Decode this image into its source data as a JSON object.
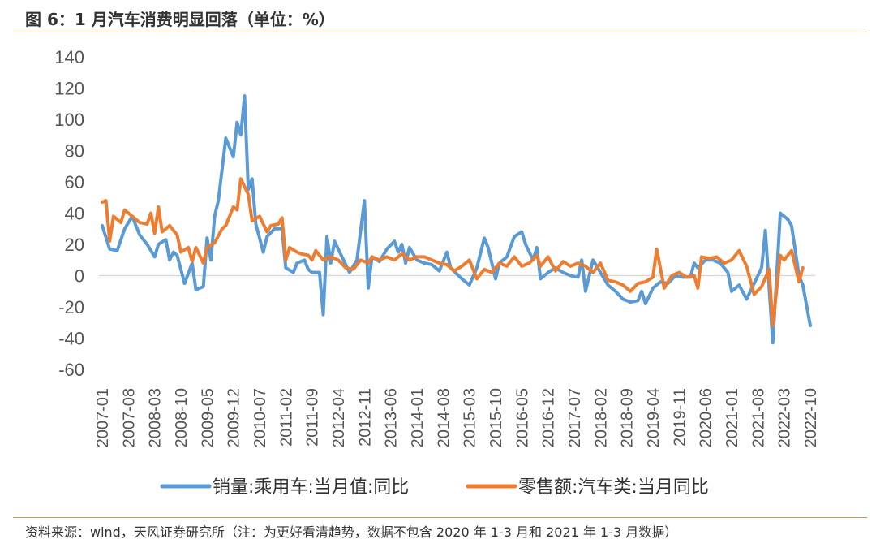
{
  "header": {
    "title": "图 6：1 月汽车消费明显回落（单位：%）"
  },
  "footer": {
    "source": "资料来源：wind，天风证券研究所（注：为更好看清趋势，数据不包含 2020 年 1-3 月和 2021 年 1-3 月数据）"
  },
  "colors": {
    "series1": "#5b9bd5",
    "series2": "#ed7d31",
    "accent_rule": "#d89a5a"
  },
  "chart_data": {
    "type": "line",
    "title": "",
    "xlabel": "",
    "ylabel": "",
    "ylim": [
      -60,
      140
    ],
    "yticks": [
      "140",
      "120",
      "100",
      "80",
      "60",
      "40",
      "20",
      "0",
      "-20",
      "-40",
      "-60"
    ],
    "xticks": [
      "2007-01",
      "2007-08",
      "2008-03",
      "2008-10",
      "2009-05",
      "2009-12",
      "2010-07",
      "2011-02",
      "2011-09",
      "2012-04",
      "2012-11",
      "2013-06",
      "2014-01",
      "2014-08",
      "2015-03",
      "2015-10",
      "2016-05",
      "2016-12",
      "2017-07",
      "2018-02",
      "2018-09",
      "2019-04",
      "2019-11",
      "2020-06",
      "2021-01",
      "2021-08",
      "2022-03",
      "2022-10"
    ],
    "legend_position": "bottom",
    "grid": false,
    "series": [
      {
        "name": "销量:乘用车:当月值:同比",
        "color": "#5b9bd5",
        "points": [
          [
            "2007-01",
            32
          ],
          [
            "2007-03",
            17
          ],
          [
            "2007-05",
            16
          ],
          [
            "2007-07",
            30
          ],
          [
            "2007-09",
            38
          ],
          [
            "2007-11",
            26
          ],
          [
            "2008-01",
            20
          ],
          [
            "2008-03",
            12
          ],
          [
            "2008-04",
            20
          ],
          [
            "2008-06",
            23
          ],
          [
            "2008-07",
            10
          ],
          [
            "2008-08",
            15
          ],
          [
            "2008-09",
            13
          ],
          [
            "2008-11",
            -5
          ],
          [
            "2009-01",
            8
          ],
          [
            "2009-02",
            -9
          ],
          [
            "2009-04",
            -7
          ],
          [
            "2009-05",
            24
          ],
          [
            "2009-06",
            10
          ],
          [
            "2009-07",
            38
          ],
          [
            "2009-08",
            48
          ],
          [
            "2009-10",
            88
          ],
          [
            "2009-12",
            76
          ],
          [
            "2010-01",
            98
          ],
          [
            "2010-02",
            90
          ],
          [
            "2010-03",
            115
          ],
          [
            "2010-04",
            55
          ],
          [
            "2010-05",
            62
          ],
          [
            "2010-06",
            33
          ],
          [
            "2010-08",
            15
          ],
          [
            "2010-09",
            25
          ],
          [
            "2010-11",
            30
          ],
          [
            "2011-01",
            30
          ],
          [
            "2011-02",
            5
          ],
          [
            "2011-04",
            2
          ],
          [
            "2011-05",
            8
          ],
          [
            "2011-07",
            10
          ],
          [
            "2011-08",
            4
          ],
          [
            "2011-09",
            2
          ],
          [
            "2011-11",
            2
          ],
          [
            "2011-12",
            -25
          ],
          [
            "2012-01",
            25
          ],
          [
            "2012-02",
            8
          ],
          [
            "2012-03",
            22
          ],
          [
            "2012-05",
            12
          ],
          [
            "2012-07",
            2
          ],
          [
            "2012-09",
            10
          ],
          [
            "2012-11",
            48
          ],
          [
            "2012-12",
            -8
          ],
          [
            "2013-01",
            12
          ],
          [
            "2013-03",
            9
          ],
          [
            "2013-05",
            17
          ],
          [
            "2013-07",
            22
          ],
          [
            "2013-08",
            15
          ],
          [
            "2013-09",
            20
          ],
          [
            "2013-10",
            8
          ],
          [
            "2013-11",
            18
          ],
          [
            "2014-01",
            10
          ],
          [
            "2014-03",
            8
          ],
          [
            "2014-05",
            7
          ],
          [
            "2014-07",
            3
          ],
          [
            "2014-09",
            15
          ],
          [
            "2014-10",
            5
          ],
          [
            "2015-01",
            -2
          ],
          [
            "2015-03",
            -6
          ],
          [
            "2015-05",
            5
          ],
          [
            "2015-07",
            24
          ],
          [
            "2015-08",
            18
          ],
          [
            "2015-10",
            -2
          ],
          [
            "2015-11",
            8
          ],
          [
            "2016-01",
            12
          ],
          [
            "2016-03",
            25
          ],
          [
            "2016-05",
            28
          ],
          [
            "2016-06",
            20
          ],
          [
            "2016-08",
            10
          ],
          [
            "2016-09",
            18
          ],
          [
            "2016-10",
            -2
          ],
          [
            "2016-12",
            2
          ],
          [
            "2017-02",
            5
          ],
          [
            "2017-04",
            2
          ],
          [
            "2017-06",
            0
          ],
          [
            "2017-08",
            -1
          ],
          [
            "2017-09",
            10
          ],
          [
            "2017-10",
            -10
          ],
          [
            "2017-12",
            10
          ],
          [
            "2018-02",
            2
          ],
          [
            "2018-04",
            -6
          ],
          [
            "2018-06",
            -10
          ],
          [
            "2018-08",
            -15
          ],
          [
            "2018-10",
            -17
          ],
          [
            "2018-12",
            -16
          ],
          [
            "2019-01",
            -10
          ],
          [
            "2019-02",
            -18
          ],
          [
            "2019-04",
            -8
          ],
          [
            "2019-06",
            -4
          ],
          [
            "2019-08",
            -5
          ],
          [
            "2019-10",
            0
          ],
          [
            "2019-12",
            -1
          ],
          [
            "2020-02",
            -1
          ],
          [
            "2020-03",
            8
          ],
          [
            "2020-04",
            5
          ],
          [
            "2020-06",
            10
          ],
          [
            "2020-08",
            10
          ],
          [
            "2020-10",
            8
          ],
          [
            "2020-12",
            2
          ],
          [
            "2021-01",
            -10
          ],
          [
            "2021-03",
            -6
          ],
          [
            "2021-05",
            -15
          ],
          [
            "2021-07",
            -5
          ],
          [
            "2021-09",
            5
          ],
          [
            "2021-10",
            29
          ],
          [
            "2021-12",
            -43
          ],
          [
            "2022-02",
            40
          ],
          [
            "2022-04",
            36
          ],
          [
            "2022-05",
            32
          ],
          [
            "2022-07",
            0
          ],
          [
            "2022-08",
            -6
          ],
          [
            "2022-10",
            -32
          ]
        ]
      },
      {
        "name": "零售额:汽车类:当月同比",
        "color": "#ed7d31",
        "points": [
          [
            "2007-01",
            47
          ],
          [
            "2007-02",
            48
          ],
          [
            "2007-03",
            22
          ],
          [
            "2007-04",
            38
          ],
          [
            "2007-06",
            34
          ],
          [
            "2007-07",
            42
          ],
          [
            "2007-09",
            38
          ],
          [
            "2007-11",
            34
          ],
          [
            "2008-01",
            33
          ],
          [
            "2008-02",
            40
          ],
          [
            "2008-03",
            27
          ],
          [
            "2008-04",
            44
          ],
          [
            "2008-05",
            28
          ],
          [
            "2008-07",
            32
          ],
          [
            "2008-09",
            26
          ],
          [
            "2008-10",
            15
          ],
          [
            "2008-12",
            18
          ],
          [
            "2009-01",
            9
          ],
          [
            "2009-02",
            18
          ],
          [
            "2009-04",
            8
          ],
          [
            "2009-05",
            18
          ],
          [
            "2009-07",
            21
          ],
          [
            "2009-09",
            30
          ],
          [
            "2009-10",
            32
          ],
          [
            "2009-12",
            44
          ],
          [
            "2010-01",
            42
          ],
          [
            "2010-02",
            62
          ],
          [
            "2010-04",
            52
          ],
          [
            "2010-05",
            35
          ],
          [
            "2010-07",
            38
          ],
          [
            "2010-09",
            28
          ],
          [
            "2010-10",
            32
          ],
          [
            "2010-12",
            33
          ],
          [
            "2011-01",
            37
          ],
          [
            "2011-02",
            10
          ],
          [
            "2011-03",
            18
          ],
          [
            "2011-05",
            15
          ],
          [
            "2011-06",
            14
          ],
          [
            "2011-08",
            13
          ],
          [
            "2011-09",
            10
          ],
          [
            "2011-10",
            16
          ],
          [
            "2011-12",
            10
          ],
          [
            "2012-02",
            12
          ],
          [
            "2012-04",
            10
          ],
          [
            "2012-06",
            5
          ],
          [
            "2012-08",
            4
          ],
          [
            "2012-10",
            10
          ],
          [
            "2012-12",
            8
          ],
          [
            "2013-01",
            12
          ],
          [
            "2013-03",
            10
          ],
          [
            "2013-05",
            12
          ],
          [
            "2013-07",
            10
          ],
          [
            "2013-09",
            14
          ],
          [
            "2013-11",
            10
          ],
          [
            "2014-01",
            12
          ],
          [
            "2014-03",
            12
          ],
          [
            "2014-05",
            10
          ],
          [
            "2014-07",
            8
          ],
          [
            "2014-09",
            7
          ],
          [
            "2014-11",
            3
          ],
          [
            "2015-01",
            6
          ],
          [
            "2015-03",
            10
          ],
          [
            "2015-05",
            -2
          ],
          [
            "2015-07",
            4
          ],
          [
            "2015-09",
            2
          ],
          [
            "2015-11",
            8
          ],
          [
            "2016-01",
            6
          ],
          [
            "2016-03",
            12
          ],
          [
            "2016-05",
            6
          ],
          [
            "2016-07",
            8
          ],
          [
            "2016-09",
            13
          ],
          [
            "2016-10",
            6
          ],
          [
            "2016-12",
            12
          ],
          [
            "2017-02",
            3
          ],
          [
            "2017-04",
            9
          ],
          [
            "2017-06",
            6
          ],
          [
            "2017-08",
            8
          ],
          [
            "2017-10",
            6
          ],
          [
            "2017-12",
            2
          ],
          [
            "2018-02",
            8
          ],
          [
            "2018-04",
            -3
          ],
          [
            "2018-06",
            -4
          ],
          [
            "2018-08",
            -6
          ],
          [
            "2018-10",
            -10
          ],
          [
            "2018-12",
            -5
          ],
          [
            "2019-02",
            -4
          ],
          [
            "2019-04",
            -1
          ],
          [
            "2019-05",
            17
          ],
          [
            "2019-07",
            -8
          ],
          [
            "2019-09",
            0
          ],
          [
            "2019-11",
            2
          ],
          [
            "2020-01",
            -1
          ],
          [
            "2020-03",
            0
          ],
          [
            "2020-04",
            -8
          ],
          [
            "2020-05",
            12
          ],
          [
            "2020-07",
            11
          ],
          [
            "2020-09",
            12
          ],
          [
            "2020-11",
            8
          ],
          [
            "2021-01",
            10
          ],
          [
            "2021-03",
            16
          ],
          [
            "2021-05",
            6
          ],
          [
            "2021-07",
            -12
          ],
          [
            "2021-09",
            -7
          ],
          [
            "2021-11",
            4
          ],
          [
            "2021-12",
            -32
          ],
          [
            "2022-02",
            13
          ],
          [
            "2022-03",
            10
          ],
          [
            "2022-05",
            16
          ],
          [
            "2022-07",
            -4
          ],
          [
            "2022-08",
            5
          ]
        ]
      }
    ]
  }
}
